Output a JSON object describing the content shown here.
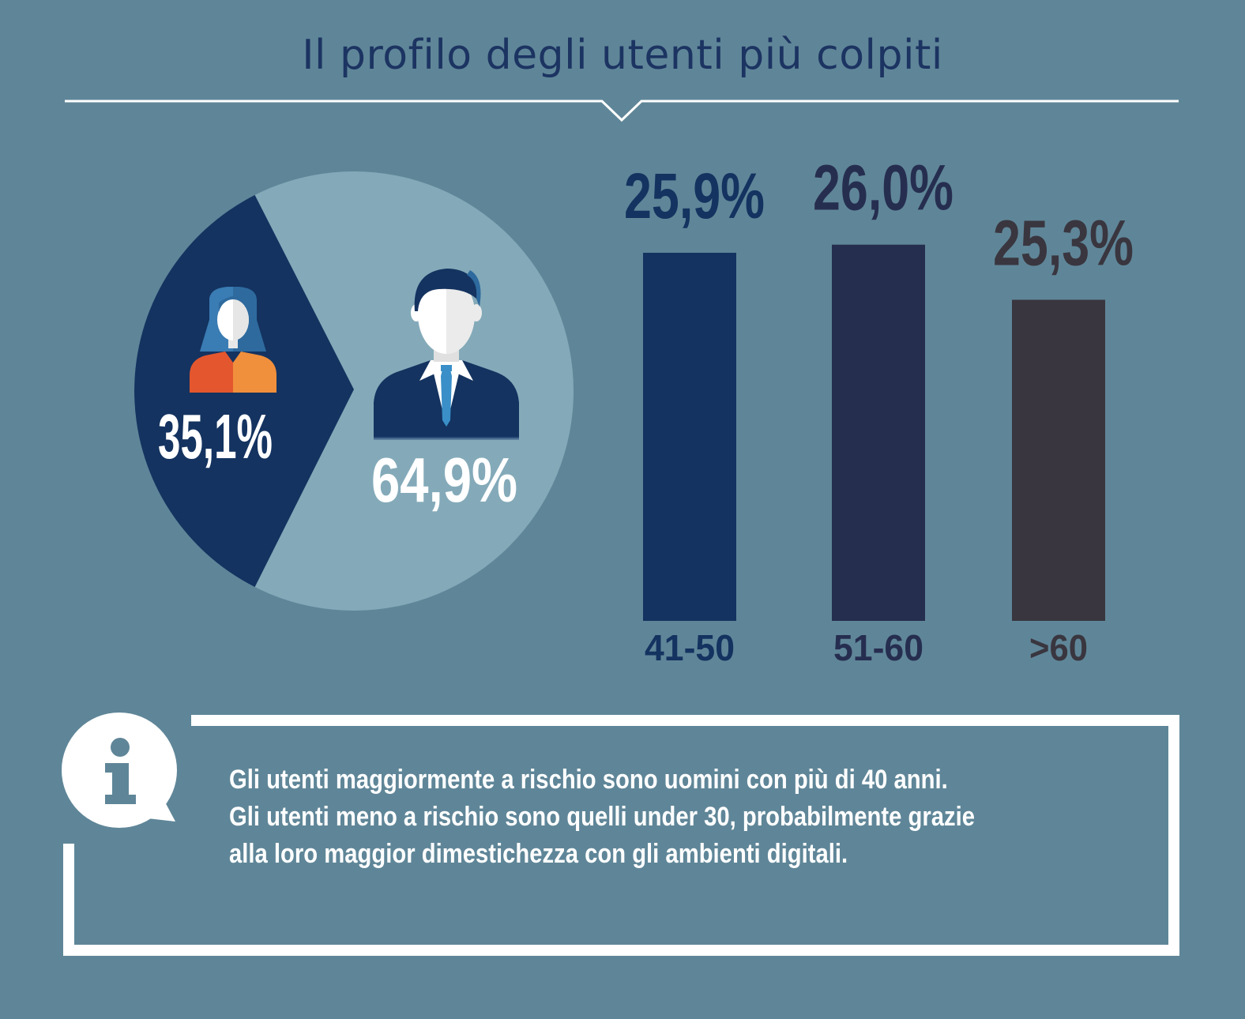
{
  "title": "Il profilo degli utenti più colpiti",
  "colors": {
    "background": "#5f8698",
    "title": "#1c3462",
    "pie_women": "#143360",
    "pie_men": "#84aab9",
    "bar_41_50": "#143360",
    "bar_51_60": "#262e50",
    "bar_over_60": "#39363f",
    "woman_top_left": "#e4572e",
    "woman_top_right": "#f08f3c",
    "frame": "#ffffff"
  },
  "icons": {
    "woman": "woman-avatar-icon",
    "man": "businessman-avatar-icon",
    "info": "info-icon"
  },
  "chart_data": [
    {
      "type": "pie",
      "title": "",
      "slices": [
        {
          "label": "35,1%",
          "value": 35.1,
          "color": "#143360",
          "icon": "woman-avatar-icon"
        },
        {
          "label": "64,9%",
          "value": 64.9,
          "color": "#84aab9",
          "icon": "businessman-avatar-icon"
        }
      ]
    },
    {
      "type": "bar",
      "title": "",
      "categories": [
        "41-50",
        "51-60",
        ">60"
      ],
      "values": [
        25.9,
        26.0,
        25.3
      ],
      "labels": [
        "25,9",
        "26,0",
        "25,3"
      ],
      "unit": "%",
      "colors": [
        "#143360",
        "#262e50",
        "#39363f"
      ],
      "xlabel": "",
      "ylabel": ""
    }
  ],
  "info_box": {
    "text": "Gli utenti maggiormente a rischio sono uomini con più di 40 anni. Gli utenti meno a rischio sono quelli under 30, probabilmente grazie alla loro maggior dimestichezza con gli ambienti digitali."
  }
}
